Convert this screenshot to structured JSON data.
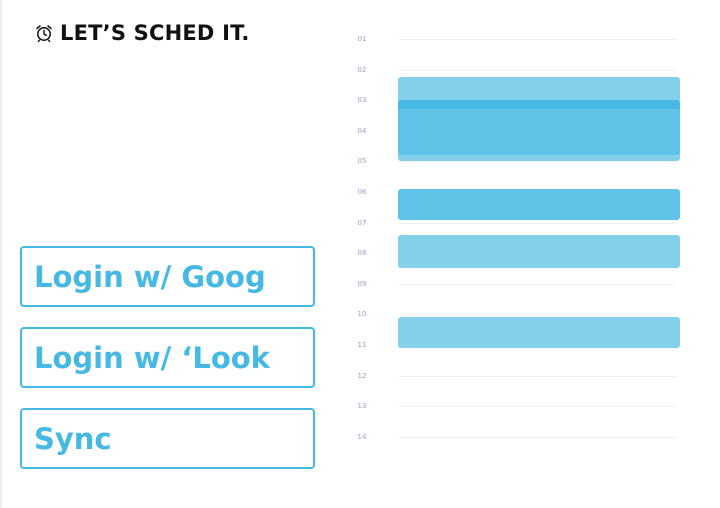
{
  "app": {
    "title": "LET’S SCHED IT.",
    "icon": "alarm-clock-icon"
  },
  "buttons": {
    "google_login": "Login w/ Goog",
    "outlook_login": "Login w/ ‘Look",
    "sync": "Sync"
  },
  "schedule": {
    "hours": [
      "01",
      "02",
      "03",
      "04",
      "05",
      "06",
      "07",
      "08",
      "09",
      "10",
      "11",
      "12",
      "13",
      "14"
    ],
    "events": [
      {
        "start": 2.25,
        "end": 5.0,
        "color": "#84d0ea"
      },
      {
        "start": 3.0,
        "end": 4.0,
        "color": "#45b9e3"
      },
      {
        "start": 3.3,
        "end": 4.8,
        "color": "#5fc4e8"
      },
      {
        "start": 5.9,
        "end": 6.9,
        "color": "#5fc4e8"
      },
      {
        "start": 7.4,
        "end": 8.5,
        "color": "#84d0ea"
      },
      {
        "start": 10.1,
        "end": 11.1,
        "color": "#84d0ea"
      }
    ]
  }
}
